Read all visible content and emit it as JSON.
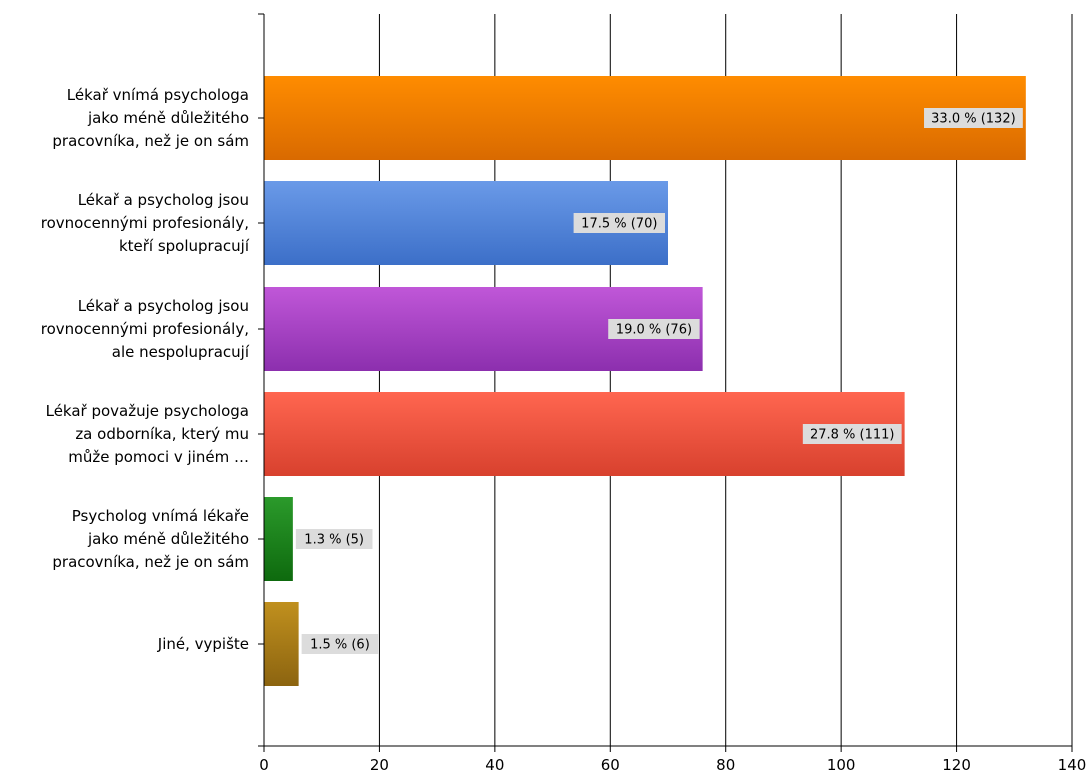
{
  "chart_data": {
    "type": "bar",
    "orientation": "horizontal",
    "categories": [
      "Lékař vnímá psychologa jako méně důležitého pracovníka, než je on sám",
      "Lékař a psycholog jsou rovnocennými profesionály, kteří spolupracují",
      "Lékař a psycholog jsou rovnocennými profesionály, ale nespolupracují",
      "Lékař považuje psychologa za odborníka, který mu může pomoci v jiném …",
      "Psycholog vnímá lékaře jako méně důležitého pracovníka, než je on sám",
      "Jiné, vypište"
    ],
    "category_lines": [
      [
        "Lékař vnímá psychologa",
        "jako méně důležitého",
        "pracovníka, než je on sám"
      ],
      [
        "Lékař a psycholog jsou",
        "rovnocennými profesionály,",
        "kteří spolupracují"
      ],
      [
        "Lékař a psycholog jsou",
        "rovnocennými profesionály,",
        "ale nespolupracují"
      ],
      [
        "Lékař považuje psychologa",
        "za odborníka, který mu",
        "může pomoci v jiném …"
      ],
      [
        "Psycholog vnímá lékaře",
        "jako méně důležitého",
        "pracovníka, než je on sám"
      ],
      [
        "Jiné, vypište"
      ]
    ],
    "values": [
      132,
      70,
      76,
      111,
      5,
      6
    ],
    "data_labels": [
      "33.0 % (132)",
      "17.5 % (70)",
      "19.0 % (76)",
      "27.8 % (111)",
      "1.3 % (5)",
      "1.5 % (6)"
    ],
    "colors": [
      [
        "#ff8c00",
        "#d96a00"
      ],
      [
        "#6a9ae8",
        "#3c6fc8"
      ],
      [
        "#c057d8",
        "#8c2fae"
      ],
      [
        "#ff6650",
        "#d8412e"
      ],
      [
        "#2b9a2b",
        "#0e6a0e"
      ],
      [
        "#c0901e",
        "#8c6410"
      ]
    ],
    "xlim": [
      0,
      140
    ],
    "xticks": [
      0,
      20,
      40,
      60,
      80,
      100,
      120,
      140
    ],
    "grid": true,
    "title": "",
    "xlabel": "",
    "ylabel": ""
  }
}
